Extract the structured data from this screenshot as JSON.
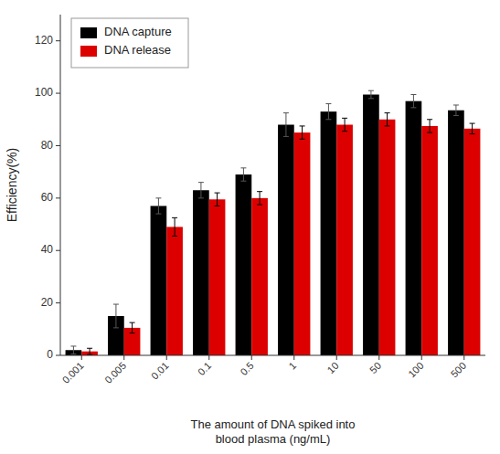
{
  "chart_data": {
    "type": "bar",
    "categories": [
      "0.001",
      "0.005",
      "0.01",
      "0.1",
      "0.5",
      "1",
      "10",
      "50",
      "100",
      "500"
    ],
    "series": [
      {
        "name": "DNA capture",
        "color": "#000000",
        "values": [
          2.0,
          15.0,
          57.0,
          63.0,
          69.0,
          88.0,
          93.0,
          99.5,
          97.0,
          93.5
        ],
        "errors": [
          1.5,
          4.5,
          3.0,
          3.0,
          2.5,
          4.5,
          3.0,
          1.5,
          2.5,
          2.0
        ]
      },
      {
        "name": "DNA release",
        "color": "#dd0000",
        "values": [
          1.5,
          10.5,
          49.0,
          59.5,
          60.0,
          85.0,
          88.0,
          90.0,
          87.5,
          86.5
        ],
        "errors": [
          1.2,
          2.0,
          3.5,
          2.5,
          2.5,
          2.5,
          2.5,
          2.5,
          2.5,
          2.0
        ]
      }
    ],
    "ylabel": "Efficiency(%)",
    "xlabel": "The amount of DNA spiked into\nblood plasma (ng/mL)",
    "ylim": [
      0,
      130
    ],
    "yticks": [
      0,
      20,
      40,
      60,
      80,
      100,
      120
    ],
    "legend": "upper-left",
    "grid": false
  }
}
